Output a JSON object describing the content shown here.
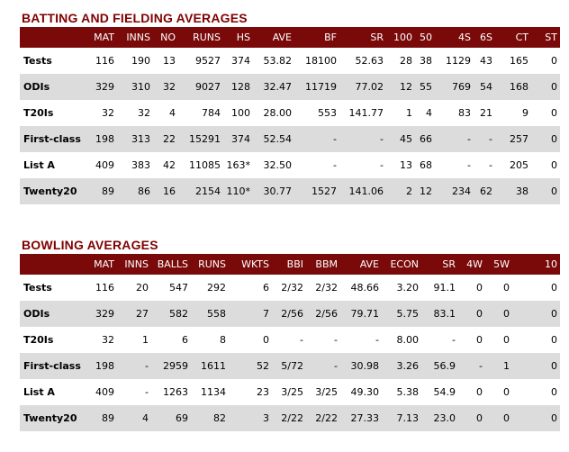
{
  "batting": {
    "title": "BATTING AND FIELDING AVERAGES",
    "columns": [
      "",
      "MAT",
      "INNS",
      "NO",
      "RUNS",
      "HS",
      "AVE",
      "BF",
      "SR",
      "100",
      "50",
      "4S",
      "6S",
      "CT",
      "ST"
    ],
    "rows": [
      [
        "Tests",
        "116",
        "190",
        "13",
        "9527",
        "374",
        "53.82",
        "18100",
        "52.63",
        "28",
        "38",
        "1129",
        "43",
        "165",
        "0"
      ],
      [
        "ODIs",
        "329",
        "310",
        "32",
        "9027",
        "128",
        "32.47",
        "11719",
        "77.02",
        "12",
        "55",
        "769",
        "54",
        "168",
        "0"
      ],
      [
        "T20Is",
        "32",
        "32",
        "4",
        "784",
        "100",
        "28.00",
        "553",
        "141.77",
        "1",
        "4",
        "83",
        "21",
        "9",
        "0"
      ],
      [
        "First-class",
        "198",
        "313",
        "22",
        "15291",
        "374",
        "52.54",
        "-",
        "-",
        "45",
        "66",
        "-",
        "-",
        "257",
        "0"
      ],
      [
        "List A",
        "409",
        "383",
        "42",
        "11085",
        "163*",
        "32.50",
        "-",
        "-",
        "13",
        "68",
        "-",
        "-",
        "205",
        "0"
      ],
      [
        "Twenty20",
        "89",
        "86",
        "16",
        "2154",
        "110*",
        "30.77",
        "1527",
        "141.06",
        "2",
        "12",
        "234",
        "62",
        "38",
        "0"
      ]
    ]
  },
  "bowling": {
    "title": "BOWLING AVERAGES",
    "columns": [
      "",
      "MAT",
      "INNS",
      "BALLS",
      "RUNS",
      "WKTS",
      "BBI",
      "BBM",
      "AVE",
      "ECON",
      "SR",
      "4W",
      "5W",
      "10"
    ],
    "rows": [
      [
        "Tests",
        "116",
        "20",
        "547",
        "292",
        "6",
        "2/32",
        "2/32",
        "48.66",
        "3.20",
        "91.1",
        "0",
        "0",
        "0"
      ],
      [
        "ODIs",
        "329",
        "27",
        "582",
        "558",
        "7",
        "2/56",
        "2/56",
        "79.71",
        "5.75",
        "83.1",
        "0",
        "0",
        "0"
      ],
      [
        "T20Is",
        "32",
        "1",
        "6",
        "8",
        "0",
        "-",
        "-",
        "-",
        "8.00",
        "-",
        "0",
        "0",
        "0"
      ],
      [
        "First-class",
        "198",
        "-",
        "2959",
        "1611",
        "52",
        "5/72",
        "-",
        "30.98",
        "3.26",
        "56.9",
        "-",
        "1",
        "0"
      ],
      [
        "List A",
        "409",
        "-",
        "1263",
        "1134",
        "23",
        "3/25",
        "3/25",
        "49.30",
        "5.38",
        "54.9",
        "0",
        "0",
        "0"
      ],
      [
        "Twenty20",
        "89",
        "4",
        "69",
        "82",
        "3",
        "2/22",
        "2/22",
        "27.33",
        "7.13",
        "23.0",
        "0",
        "0",
        "0"
      ]
    ]
  }
}
